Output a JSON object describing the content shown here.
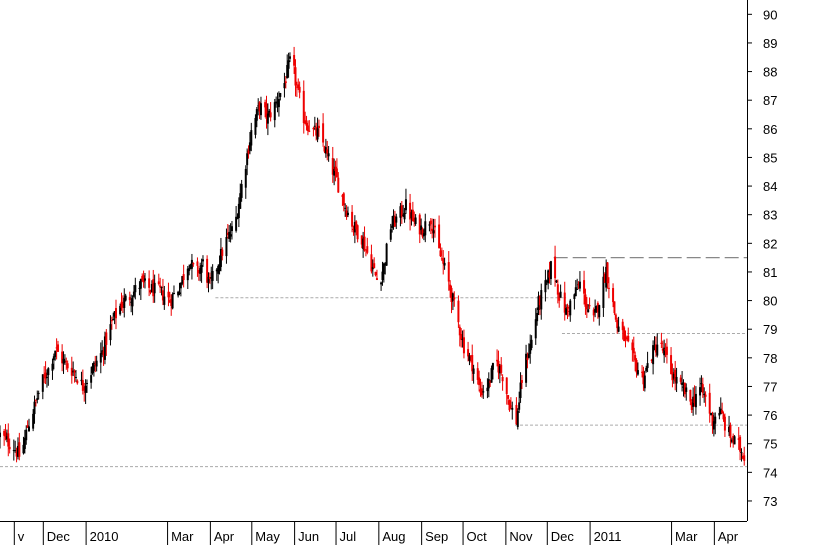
{
  "chart_data": {
    "type": "candlestick",
    "title": "",
    "xlabel": "",
    "ylabel": "",
    "ylim": [
      72.3,
      90.5
    ],
    "y_ticks": [
      73,
      74,
      75,
      76,
      77,
      78,
      79,
      80,
      81,
      82,
      83,
      84,
      85,
      86,
      87,
      88,
      89,
      90
    ],
    "y_axis_position": "right",
    "x_ticks": [
      {
        "label": "v",
        "day": 0
      },
      {
        "label": "Dec",
        "day": 21
      },
      {
        "label": "2010",
        "day": 52
      },
      {
        "label": "Mar",
        "day": 111
      },
      {
        "label": "Apr",
        "day": 142
      },
      {
        "label": "May",
        "day": 172
      },
      {
        "label": "Jun",
        "day": 203
      },
      {
        "label": "Jul",
        "day": 233
      },
      {
        "label": "Aug",
        "day": 264
      },
      {
        "label": "Sep",
        "day": 295
      },
      {
        "label": "Oct",
        "day": 325
      },
      {
        "label": "Nov",
        "day": 356
      },
      {
        "label": "Dec",
        "day": 386
      },
      {
        "label": "2011",
        "day": 417
      },
      {
        "label": "Mar",
        "day": 476
      },
      {
        "label": "Apr",
        "day": 507
      }
    ],
    "x_range_days": [
      -10,
      531
    ],
    "close_anchors": [
      [
        -10,
        75.3
      ],
      [
        0,
        74.9
      ],
      [
        5,
        74.5
      ],
      [
        10,
        75.6
      ],
      [
        15,
        76.3
      ],
      [
        20,
        77.1
      ],
      [
        25,
        77.6
      ],
      [
        30,
        78.3
      ],
      [
        37,
        77.8
      ],
      [
        44,
        77.5
      ],
      [
        50,
        77.0
      ],
      [
        57,
        77.6
      ],
      [
        64,
        78.2
      ],
      [
        71,
        79.2
      ],
      [
        78,
        79.9
      ],
      [
        85,
        80.2
      ],
      [
        92,
        80.6
      ],
      [
        99,
        80.4
      ],
      [
        106,
        80.3
      ],
      [
        113,
        80.0
      ],
      [
        120,
        80.5
      ],
      [
        127,
        81.4
      ],
      [
        132,
        80.9
      ],
      [
        137,
        81.3
      ],
      [
        142,
        80.5
      ],
      [
        147,
        81.2
      ],
      [
        154,
        82.1
      ],
      [
        160,
        82.6
      ],
      [
        166,
        84.3
      ],
      [
        172,
        85.9
      ],
      [
        178,
        86.8
      ],
      [
        184,
        86.4
      ],
      [
        190,
        86.9
      ],
      [
        196,
        87.6
      ],
      [
        201,
        88.5
      ],
      [
        205,
        87.4
      ],
      [
        210,
        86.4
      ],
      [
        216,
        85.9
      ],
      [
        222,
        85.8
      ],
      [
        228,
        84.9
      ],
      [
        234,
        84.2
      ],
      [
        240,
        83.3
      ],
      [
        246,
        82.6
      ],
      [
        252,
        82.2
      ],
      [
        258,
        81.4
      ],
      [
        264,
        80.6
      ],
      [
        268,
        81.2
      ],
      [
        273,
        82.6
      ],
      [
        278,
        82.9
      ],
      [
        284,
        83.3
      ],
      [
        290,
        82.7
      ],
      [
        296,
        82.5
      ],
      [
        302,
        82.9
      ],
      [
        308,
        81.7
      ],
      [
        314,
        80.8
      ],
      [
        320,
        79.6
      ],
      [
        326,
        78.4
      ],
      [
        332,
        77.8
      ],
      [
        338,
        76.8
      ],
      [
        344,
        77.1
      ],
      [
        349,
        77.9
      ],
      [
        354,
        77.4
      ],
      [
        359,
        76.4
      ],
      [
        364,
        75.8
      ],
      [
        369,
        77.6
      ],
      [
        375,
        78.6
      ],
      [
        380,
        79.9
      ],
      [
        386,
        80.6
      ],
      [
        390,
        81.4
      ],
      [
        395,
        80.2
      ],
      [
        400,
        79.6
      ],
      [
        405,
        80.1
      ],
      [
        410,
        80.6
      ],
      [
        415,
        79.8
      ],
      [
        420,
        79.3
      ],
      [
        425,
        80.2
      ],
      [
        429,
        81.1
      ],
      [
        433,
        80.1
      ],
      [
        437,
        79.1
      ],
      [
        442,
        78.7
      ],
      [
        447,
        78.1
      ],
      [
        452,
        77.6
      ],
      [
        456,
        77.3
      ],
      [
        461,
        78.0
      ],
      [
        466,
        78.5
      ],
      [
        471,
        78.2
      ],
      [
        476,
        77.5
      ],
      [
        481,
        77.1
      ],
      [
        486,
        76.8
      ],
      [
        491,
        76.4
      ],
      [
        496,
        77.0
      ],
      [
        501,
        76.6
      ],
      [
        506,
        75.8
      ],
      [
        511,
        76.2
      ],
      [
        516,
        75.5
      ],
      [
        521,
        75.1
      ],
      [
        525,
        74.9
      ],
      [
        529,
        74.6
      ],
      [
        531,
        74.2
      ]
    ],
    "support_resistance_lines": [
      {
        "style": "dashed",
        "y": 81.5,
        "from_day": 391,
        "to_day": 531
      },
      {
        "style": "dotted",
        "y": 78.85,
        "from_day": 397,
        "to_day": 531
      },
      {
        "style": "dotted",
        "y": 80.1,
        "from_day": 146,
        "to_day": 400
      },
      {
        "style": "dotted",
        "y": 75.65,
        "from_day": 363,
        "to_day": 531
      },
      {
        "style": "dotted",
        "y": 74.2,
        "from_day": -10,
        "to_day": 531
      }
    ],
    "colors": {
      "up_candle": "#000000",
      "down_candle": "#ee0000",
      "grid": "#000000",
      "dashed_line": "#888888",
      "dotted_line": "#aaaaaa"
    },
    "grid": false
  }
}
